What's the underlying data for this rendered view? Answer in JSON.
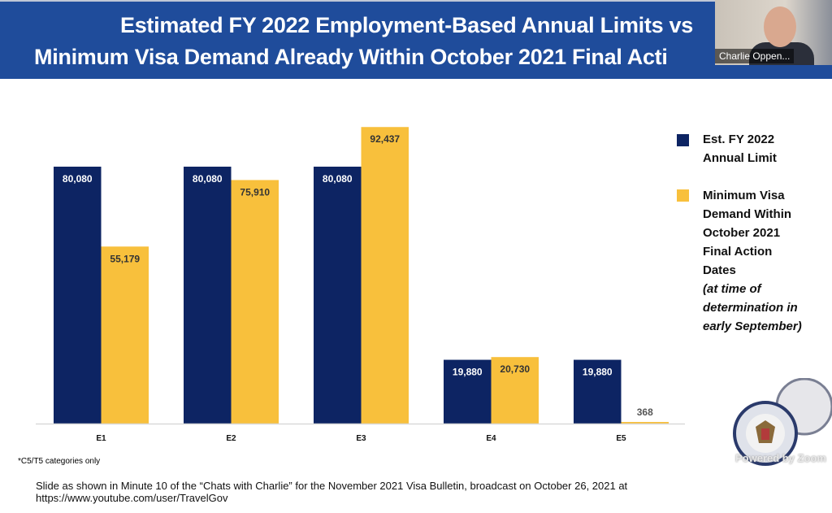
{
  "header": {
    "title_line1": "Estimated FY 2022 Employment-Based Annual Limits vs",
    "title_line2": "Minimum Visa Demand Already Within October 2021 Final Acti"
  },
  "video": {
    "participant_name": "Charlie Oppen...",
    "powered_by": "Powered by Zoom"
  },
  "chart_data": {
    "type": "bar",
    "title": "Estimated FY 2022 Employment-Based Annual Limits vs Minimum Visa Demand Already Within October 2021 Final Acti",
    "categories": [
      "E1",
      "E2",
      "E3",
      "E4",
      "E5"
    ],
    "series": [
      {
        "name": "Est. FY 2022 Annual Limit",
        "color": "#0d2463",
        "values": [
          80080,
          80080,
          80080,
          19880,
          19880
        ],
        "labels": [
          "80,080",
          "80,080",
          "80,080",
          "19,880",
          "19,880"
        ]
      },
      {
        "name": "Minimum Visa Demand Within October 2021 Final Action Dates (at time of determination in early September)",
        "color": "#f8c03c",
        "values": [
          55179,
          75910,
          92437,
          20730,
          368
        ],
        "labels": [
          "55,179",
          "75,910",
          "92,437",
          "20,730",
          "368"
        ]
      }
    ],
    "ylim": [
      0,
      100000
    ],
    "grid": false,
    "legend": "right"
  },
  "legend": {
    "item1_lines": [
      "Est. FY 2022",
      "Annual Limit"
    ],
    "item2_lines": [
      "Minimum Visa",
      "Demand Within",
      "October 2021",
      "Final Action",
      "Dates"
    ],
    "item2_italic_lines": [
      "(at time of",
      "determination in",
      "early September)"
    ]
  },
  "footnote": "*C5/T5 categories only",
  "caption_line1": "Slide as shown in Minute 10 of the “Chats with Charlie” for the November 2021 Visa Bulletin, broadcast on October 26, 2021 at",
  "caption_line2": "https://www.youtube.com/user/TravelGov"
}
